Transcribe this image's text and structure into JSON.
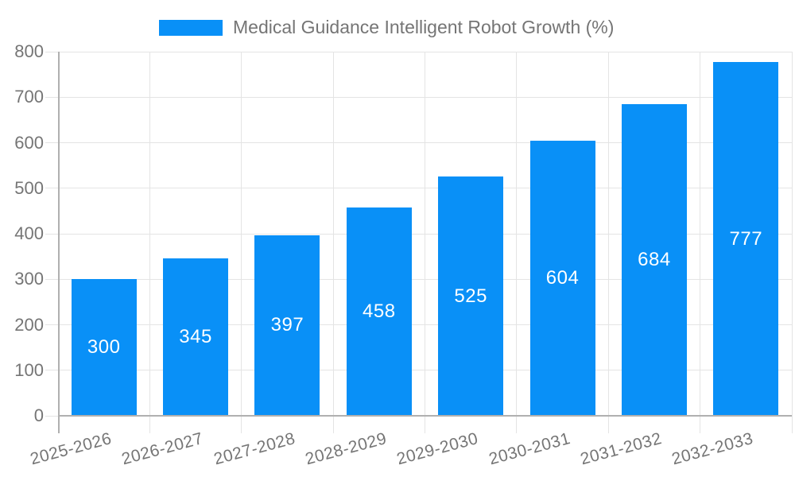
{
  "chart_data": {
    "type": "bar",
    "title": "Medical Guidance Intelligent Robot Growth (%)",
    "series_name": "Medical Guidance Intelligent Robot Growth (%)",
    "categories": [
      "2025-2026",
      "2026-2027",
      "2027-2028",
      "2028-2029",
      "2029-2030",
      "2030-2031",
      "2031-2032",
      "2032-2033"
    ],
    "values": [
      300,
      345,
      397,
      458,
      525,
      604,
      684,
      777
    ],
    "value_labels": [
      "300",
      "345",
      "397",
      "458",
      "525",
      "604",
      "684",
      "777"
    ],
    "xlabel": "",
    "ylabel": "",
    "ylim": [
      0,
      800
    ],
    "y_ticks": [
      0,
      100,
      200,
      300,
      400,
      500,
      600,
      700,
      800
    ],
    "y_tick_labels": [
      "0",
      "100",
      "200",
      "300",
      "400",
      "500",
      "600",
      "700",
      "800"
    ],
    "grid": true,
    "legend_position": "top-center",
    "colors": {
      "bar": "#0990f7",
      "bar_value_text": "#ffffff",
      "axis_text": "#757575",
      "gridline": "#e4e4e4",
      "axis_line": "#b0b0b0",
      "background": "#ffffff"
    }
  }
}
